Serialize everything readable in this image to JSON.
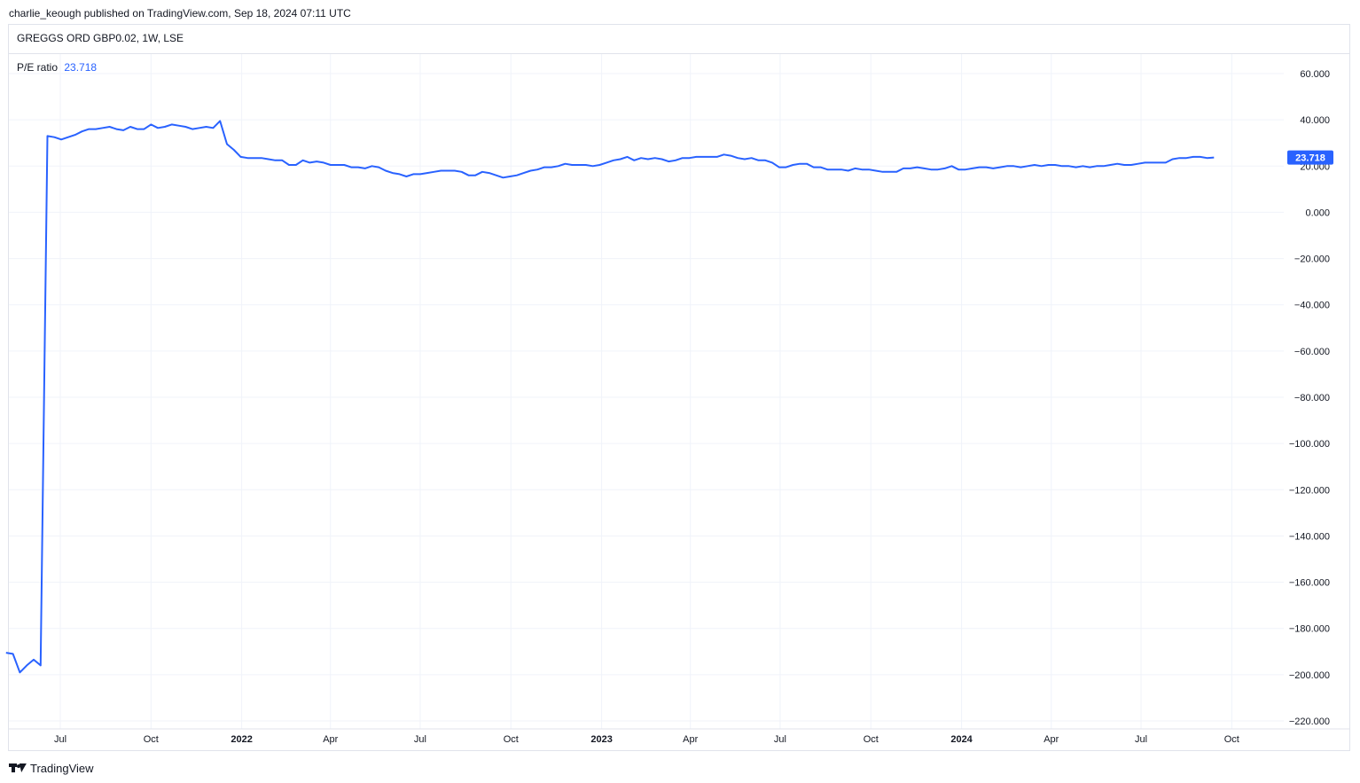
{
  "publisher_line": "charlie_keough published on TradingView.com, Sep 18, 2024 07:11 UTC",
  "symbol_line": "GREGGS ORD GBP0.02, 1W, LSE",
  "legend": {
    "name": "P/E ratio",
    "value": "23.718"
  },
  "footer": {
    "brand": "TradingView",
    "logo_icon": "tradingview-logo-icon"
  },
  "colors": {
    "line": "#2962ff",
    "grid": "#f0f3fa",
    "text": "#131722",
    "border": "#e0e3eb"
  },
  "chart_data": {
    "type": "line",
    "title": "",
    "xlabel": "",
    "ylabel": "",
    "ylim": [
      -220,
      60
    ],
    "y_ticks": [
      "60.000",
      "40.000",
      "20.000",
      "0.000",
      "−20.000",
      "−40.000",
      "−60.000",
      "−80.000",
      "−100.000",
      "−120.000",
      "−140.000",
      "−160.000",
      "−180.000",
      "−200.000",
      "−220.000"
    ],
    "y_tick_values": [
      60,
      40,
      20,
      0,
      -20,
      -40,
      -60,
      -80,
      -100,
      -120,
      -140,
      -160,
      -180,
      -200,
      -220
    ],
    "x_ticks": [
      {
        "label": "Jul",
        "date": "2021-07-01",
        "bold": false
      },
      {
        "label": "Oct",
        "date": "2021-10-01",
        "bold": false
      },
      {
        "label": "2022",
        "date": "2022-01-01",
        "bold": true
      },
      {
        "label": "Apr",
        "date": "2022-04-01",
        "bold": false
      },
      {
        "label": "Jul",
        "date": "2022-07-01",
        "bold": false
      },
      {
        "label": "Oct",
        "date": "2022-10-01",
        "bold": false
      },
      {
        "label": "2023",
        "date": "2023-01-01",
        "bold": true
      },
      {
        "label": "Apr",
        "date": "2023-04-01",
        "bold": false
      },
      {
        "label": "Jul",
        "date": "2023-07-01",
        "bold": false
      },
      {
        "label": "Oct",
        "date": "2023-10-01",
        "bold": false
      },
      {
        "label": "2024",
        "date": "2024-01-01",
        "bold": true
      },
      {
        "label": "Apr",
        "date": "2024-04-01",
        "bold": false
      },
      {
        "label": "Jul",
        "date": "2024-07-01",
        "bold": false
      },
      {
        "label": "Oct",
        "date": "2024-10-01",
        "bold": false
      }
    ],
    "last_value_label": "23.718",
    "series": [
      {
        "values": [
          [
            "2021-05-07",
            -190.5
          ],
          [
            "2021-05-14",
            -191
          ],
          [
            "2021-05-21",
            -199
          ],
          [
            "2021-05-28",
            -196
          ],
          [
            "2021-06-04",
            -193.5
          ],
          [
            "2021-06-11",
            -196
          ],
          [
            "2021-06-18",
            33
          ],
          [
            "2021-06-25",
            32.5
          ],
          [
            "2021-07-02",
            31.5
          ],
          [
            "2021-07-09",
            32.5
          ],
          [
            "2021-07-16",
            33.5
          ],
          [
            "2021-07-23",
            35
          ],
          [
            "2021-07-30",
            36
          ],
          [
            "2021-08-06",
            36
          ],
          [
            "2021-08-13",
            36.5
          ],
          [
            "2021-08-20",
            37
          ],
          [
            "2021-08-27",
            36
          ],
          [
            "2021-09-03",
            35.5
          ],
          [
            "2021-09-10",
            37
          ],
          [
            "2021-09-17",
            36
          ],
          [
            "2021-09-24",
            36
          ],
          [
            "2021-10-01",
            38
          ],
          [
            "2021-10-08",
            36.5
          ],
          [
            "2021-10-15",
            37
          ],
          [
            "2021-10-22",
            38
          ],
          [
            "2021-10-29",
            37.5
          ],
          [
            "2021-11-05",
            37
          ],
          [
            "2021-11-12",
            36
          ],
          [
            "2021-11-19",
            36.5
          ],
          [
            "2021-11-26",
            37
          ],
          [
            "2021-12-03",
            36.5
          ],
          [
            "2021-12-10",
            39.5
          ],
          [
            "2021-12-17",
            29.5
          ],
          [
            "2021-12-24",
            27
          ],
          [
            "2021-12-31",
            24
          ],
          [
            "2022-01-07",
            23.5
          ],
          [
            "2022-01-14",
            23.5
          ],
          [
            "2022-01-21",
            23.5
          ],
          [
            "2022-01-28",
            23
          ],
          [
            "2022-02-04",
            22.5
          ],
          [
            "2022-02-11",
            22.5
          ],
          [
            "2022-02-18",
            20.5
          ],
          [
            "2022-02-25",
            20.5
          ],
          [
            "2022-03-04",
            22.5
          ],
          [
            "2022-03-11",
            21.5
          ],
          [
            "2022-03-18",
            22
          ],
          [
            "2022-03-25",
            21.5
          ],
          [
            "2022-04-01",
            20.5
          ],
          [
            "2022-04-08",
            20.5
          ],
          [
            "2022-04-15",
            20.5
          ],
          [
            "2022-04-22",
            19.5
          ],
          [
            "2022-04-29",
            19.5
          ],
          [
            "2022-05-06",
            19
          ],
          [
            "2022-05-13",
            20
          ],
          [
            "2022-05-20",
            19.5
          ],
          [
            "2022-05-27",
            18
          ],
          [
            "2022-06-03",
            17
          ],
          [
            "2022-06-10",
            16.5
          ],
          [
            "2022-06-17",
            15.5
          ],
          [
            "2022-06-24",
            16.5
          ],
          [
            "2022-07-01",
            16.5
          ],
          [
            "2022-07-08",
            17
          ],
          [
            "2022-07-15",
            17.5
          ],
          [
            "2022-07-22",
            18
          ],
          [
            "2022-07-29",
            18
          ],
          [
            "2022-08-05",
            18
          ],
          [
            "2022-08-12",
            17.5
          ],
          [
            "2022-08-19",
            16
          ],
          [
            "2022-08-26",
            16
          ],
          [
            "2022-09-02",
            17.5
          ],
          [
            "2022-09-09",
            17
          ],
          [
            "2022-09-16",
            16
          ],
          [
            "2022-09-23",
            15
          ],
          [
            "2022-09-30",
            15.5
          ],
          [
            "2022-10-07",
            16
          ],
          [
            "2022-10-14",
            17
          ],
          [
            "2022-10-21",
            18
          ],
          [
            "2022-10-28",
            18.5
          ],
          [
            "2022-11-04",
            19.5
          ],
          [
            "2022-11-11",
            19.5
          ],
          [
            "2022-11-18",
            20
          ],
          [
            "2022-11-25",
            21
          ],
          [
            "2022-12-02",
            20.5
          ],
          [
            "2022-12-09",
            20.5
          ],
          [
            "2022-12-16",
            20.5
          ],
          [
            "2022-12-23",
            20
          ],
          [
            "2022-12-30",
            20.5
          ],
          [
            "2023-01-06",
            21.5
          ],
          [
            "2023-01-13",
            22.5
          ],
          [
            "2023-01-20",
            23
          ],
          [
            "2023-01-27",
            24
          ],
          [
            "2023-02-03",
            22.5
          ],
          [
            "2023-02-10",
            23.5
          ],
          [
            "2023-02-17",
            23
          ],
          [
            "2023-02-24",
            23.5
          ],
          [
            "2023-03-03",
            23
          ],
          [
            "2023-03-10",
            22
          ],
          [
            "2023-03-17",
            22.5
          ],
          [
            "2023-03-24",
            23.5
          ],
          [
            "2023-03-31",
            23.5
          ],
          [
            "2023-04-07",
            24
          ],
          [
            "2023-04-14",
            24
          ],
          [
            "2023-04-21",
            24
          ],
          [
            "2023-04-28",
            24
          ],
          [
            "2023-05-05",
            25
          ],
          [
            "2023-05-12",
            24.5
          ],
          [
            "2023-05-19",
            23.5
          ],
          [
            "2023-05-26",
            23
          ],
          [
            "2023-06-02",
            23.5
          ],
          [
            "2023-06-09",
            22.5
          ],
          [
            "2023-06-16",
            22.5
          ],
          [
            "2023-06-23",
            21.5
          ],
          [
            "2023-06-30",
            19.5
          ],
          [
            "2023-07-07",
            19.5
          ],
          [
            "2023-07-14",
            20.5
          ],
          [
            "2023-07-21",
            21
          ],
          [
            "2023-07-28",
            21
          ],
          [
            "2023-08-04",
            19.5
          ],
          [
            "2023-08-11",
            19.5
          ],
          [
            "2023-08-18",
            18.5
          ],
          [
            "2023-08-25",
            18.5
          ],
          [
            "2023-09-01",
            18.5
          ],
          [
            "2023-09-08",
            18
          ],
          [
            "2023-09-15",
            19
          ],
          [
            "2023-09-22",
            18.5
          ],
          [
            "2023-09-29",
            18.5
          ],
          [
            "2023-10-06",
            18
          ],
          [
            "2023-10-13",
            17.5
          ],
          [
            "2023-10-20",
            17.5
          ],
          [
            "2023-10-27",
            17.5
          ],
          [
            "2023-11-03",
            19
          ],
          [
            "2023-11-10",
            19
          ],
          [
            "2023-11-17",
            19.5
          ],
          [
            "2023-11-24",
            19
          ],
          [
            "2023-12-01",
            18.5
          ],
          [
            "2023-12-08",
            18.5
          ],
          [
            "2023-12-15",
            19
          ],
          [
            "2023-12-22",
            20
          ],
          [
            "2023-12-29",
            18.5
          ],
          [
            "2024-01-05",
            18.5
          ],
          [
            "2024-01-12",
            19
          ],
          [
            "2024-01-19",
            19.5
          ],
          [
            "2024-01-26",
            19.5
          ],
          [
            "2024-02-02",
            19
          ],
          [
            "2024-02-09",
            19.5
          ],
          [
            "2024-02-16",
            20
          ],
          [
            "2024-02-23",
            20
          ],
          [
            "2024-03-01",
            19.5
          ],
          [
            "2024-03-08",
            20
          ],
          [
            "2024-03-15",
            20.5
          ],
          [
            "2024-03-22",
            20
          ],
          [
            "2024-03-29",
            20.5
          ],
          [
            "2024-04-05",
            20.5
          ],
          [
            "2024-04-12",
            20
          ],
          [
            "2024-04-19",
            20
          ],
          [
            "2024-04-26",
            19.5
          ],
          [
            "2024-05-03",
            20
          ],
          [
            "2024-05-10",
            19.5
          ],
          [
            "2024-05-17",
            20
          ],
          [
            "2024-05-24",
            20
          ],
          [
            "2024-05-31",
            20.5
          ],
          [
            "2024-06-07",
            21
          ],
          [
            "2024-06-14",
            20.5
          ],
          [
            "2024-06-21",
            20.5
          ],
          [
            "2024-06-28",
            21
          ],
          [
            "2024-07-05",
            21.5
          ],
          [
            "2024-07-12",
            21.5
          ],
          [
            "2024-07-19",
            21.5
          ],
          [
            "2024-07-26",
            21.5
          ],
          [
            "2024-08-02",
            23
          ],
          [
            "2024-08-09",
            23.5
          ],
          [
            "2024-08-16",
            23.5
          ],
          [
            "2024-08-23",
            24
          ],
          [
            "2024-08-30",
            24
          ],
          [
            "2024-09-06",
            23.5
          ],
          [
            "2024-09-13",
            23.718
          ]
        ]
      }
    ]
  }
}
